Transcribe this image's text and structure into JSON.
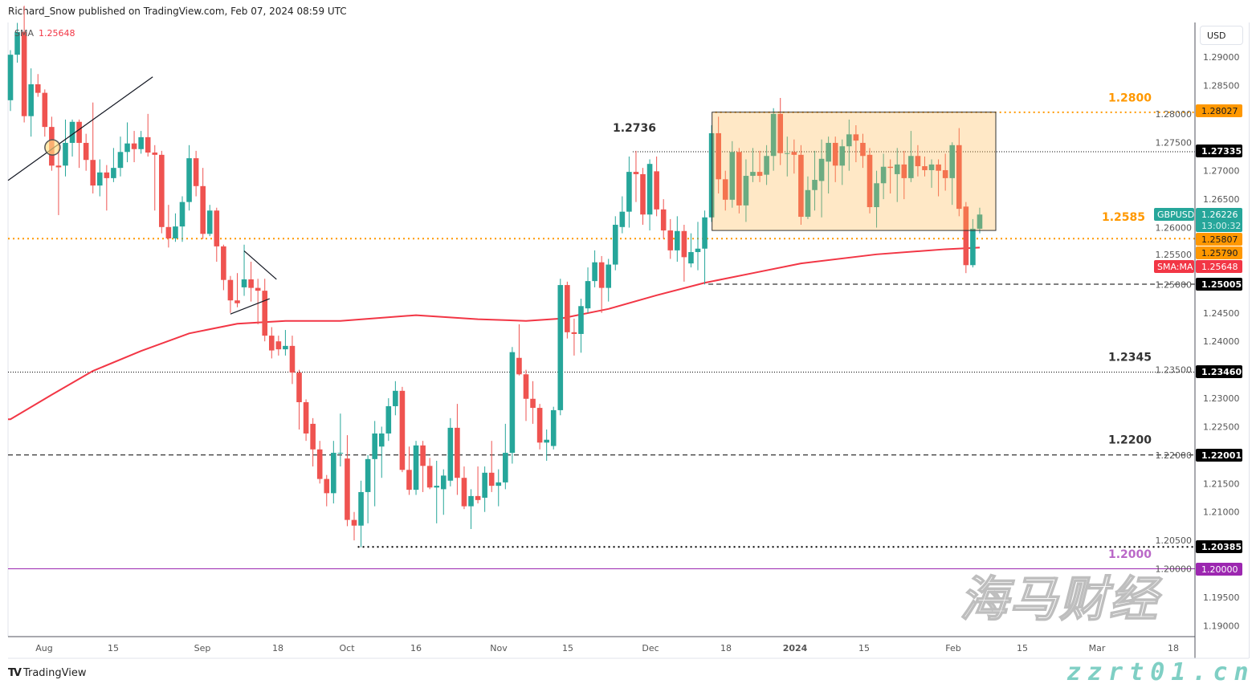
{
  "header": {
    "attribution": "Richard_Snow published on TradingView.com, Feb 07, 2024 08:59 UTC"
  },
  "legend": {
    "name": "SMA",
    "value": "1.25648"
  },
  "price_axis": {
    "currency": "USD",
    "ticks": [
      "1.29000",
      "1.28500",
      "1.28000",
      "1.27500",
      "1.27000",
      "1.26500",
      "1.26000",
      "1.25500",
      "1.25000",
      "1.24500",
      "1.24000",
      "1.23500",
      "1.23000",
      "1.22500",
      "1.22000",
      "1.21500",
      "1.21000",
      "1.20500",
      "1.20000",
      "1.19500",
      "1.19000"
    ]
  },
  "time_axis": {
    "labels": [
      "Aug",
      "15",
      "Sep",
      "18",
      "Oct",
      "16",
      "Nov",
      "15",
      "Dec",
      "18",
      "2024",
      "15",
      "Feb",
      "15",
      "Mar",
      "18"
    ]
  },
  "annotations": [
    {
      "text": "1.2800",
      "color": "#ff9800",
      "price": 1.2822
    },
    {
      "text": "1.2736",
      "color": "#333333",
      "price": 1.2769
    },
    {
      "text": "1.2585",
      "color": "#ff9800",
      "price": 1.2612
    },
    {
      "text": "1.2345",
      "color": "#333333",
      "price": 1.2366
    },
    {
      "text": "1.2200",
      "color": "#333333",
      "price": 1.222
    },
    {
      "text": "1.2000",
      "color": "#ba68c8",
      "price": 1.2019
    }
  ],
  "right_labels": [
    {
      "text": "1.28027",
      "bg": "#ff9800",
      "fg": "#131722"
    },
    {
      "text": "1.27335",
      "bg": "#000000",
      "fg": "#ffffff"
    },
    {
      "text": "1.26226",
      "sub": "13:00:32",
      "tag": "GBPUSD",
      "bg": "#26a69a",
      "fg": "#ffffff"
    },
    {
      "text": "1.25807",
      "bg": "#ff9800",
      "fg": "#131722"
    },
    {
      "text": "1.25790",
      "bg": "#ff9800",
      "fg": "#131722"
    },
    {
      "text": "1.25648",
      "tag": "SMA:MA",
      "bg": "#f23645",
      "fg": "#ffffff"
    },
    {
      "text": "1.25005",
      "bg": "#000000",
      "fg": "#ffffff"
    },
    {
      "text": "1.23460",
      "bg": "#000000",
      "fg": "#ffffff"
    },
    {
      "text": "1.22001",
      "bg": "#000000",
      "fg": "#ffffff"
    },
    {
      "text": "1.20385",
      "bg": "#000000",
      "fg": "#ffffff"
    },
    {
      "text": "1.20000",
      "bg": "#9c27b0",
      "fg": "#ffffff"
    }
  ],
  "chart_data": {
    "type": "candlestick",
    "symbol": "GBPUSD",
    "interval": "1D",
    "ylim": [
      1.1875,
      1.2965
    ],
    "colors": {
      "up": "#26a69a",
      "down": "#ef5350",
      "sma": "#f23645",
      "box": "#ffcc80"
    },
    "candles_ohlc": [
      [
        1.2824,
        1.2912,
        1.2805,
        1.2904
      ],
      [
        1.2904,
        1.296,
        1.289,
        1.2944
      ],
      [
        1.2944,
        1.299,
        1.2785,
        1.2796
      ],
      [
        1.2796,
        1.288,
        1.276,
        1.2852
      ],
      [
        1.2852,
        1.287,
        1.283,
        1.2837
      ],
      [
        1.2837,
        1.2843,
        1.276,
        1.2777
      ],
      [
        1.2777,
        1.2795,
        1.27,
        1.2709
      ],
      [
        1.2709,
        1.275,
        1.2622,
        1.2706
      ],
      [
        1.2709,
        1.279,
        1.269,
        1.2749
      ],
      [
        1.2749,
        1.279,
        1.2725,
        1.2786
      ],
      [
        1.2786,
        1.279,
        1.2705,
        1.2749
      ],
      [
        1.2749,
        1.2765,
        1.27,
        1.2719
      ],
      [
        1.2719,
        1.282,
        1.266,
        1.2674
      ],
      [
        1.2674,
        1.272,
        1.2655,
        1.2697
      ],
      [
        1.2697,
        1.271,
        1.263,
        1.2687
      ],
      [
        1.2687,
        1.274,
        1.268,
        1.2705
      ],
      [
        1.2705,
        1.276,
        1.269,
        1.2733
      ],
      [
        1.2733,
        1.2785,
        1.2715,
        1.2748
      ],
      [
        1.2748,
        1.277,
        1.2715,
        1.2738
      ],
      [
        1.2738,
        1.277,
        1.273,
        1.2759
      ],
      [
        1.2759,
        1.28,
        1.2725,
        1.2732
      ],
      [
        1.2732,
        1.2745,
        1.263,
        1.2728
      ],
      [
        1.2728,
        1.2735,
        1.259,
        1.2601
      ],
      [
        1.2601,
        1.264,
        1.2565,
        1.2581
      ],
      [
        1.2581,
        1.2625,
        1.2575,
        1.2602
      ],
      [
        1.2602,
        1.2655,
        1.2575,
        1.2645
      ],
      [
        1.2645,
        1.2745,
        1.263,
        1.2722
      ],
      [
        1.2722,
        1.2735,
        1.2655,
        1.2673
      ],
      [
        1.2673,
        1.2705,
        1.258,
        1.2589
      ],
      [
        1.2589,
        1.264,
        1.2585,
        1.263
      ],
      [
        1.263,
        1.2635,
        1.254,
        1.2567
      ],
      [
        1.2567,
        1.257,
        1.249,
        1.2508
      ],
      [
        1.2508,
        1.2515,
        1.245,
        1.2472
      ],
      [
        1.2472,
        1.252,
        1.246,
        1.2467
      ],
      [
        1.2495,
        1.257,
        1.248,
        1.2509
      ],
      [
        1.2509,
        1.254,
        1.247,
        1.2494
      ],
      [
        1.2494,
        1.251,
        1.243,
        1.2489
      ],
      [
        1.2489,
        1.251,
        1.24,
        1.241
      ],
      [
        1.241,
        1.2425,
        1.237,
        1.2384
      ],
      [
        1.24,
        1.241,
        1.2375,
        1.2386
      ],
      [
        1.2386,
        1.242,
        1.2375,
        1.2392
      ],
      [
        1.2392,
        1.241,
        1.2325,
        1.2345
      ],
      [
        1.2345,
        1.235,
        1.2245,
        1.2293
      ],
      [
        1.2293,
        1.2298,
        1.2225,
        1.2238
      ],
      [
        1.2255,
        1.2265,
        1.218,
        1.221
      ],
      [
        1.221,
        1.2225,
        1.215,
        1.2158
      ],
      [
        1.2158,
        1.2165,
        1.211,
        1.2133
      ],
      [
        1.2133,
        1.2225,
        1.2115,
        1.2204
      ],
      [
        1.2204,
        1.2273,
        1.218,
        1.2204
      ],
      [
        1.2194,
        1.2235,
        1.2075,
        1.2086
      ],
      [
        1.2086,
        1.21,
        1.205,
        1.2076
      ],
      [
        1.2076,
        1.2155,
        1.2038,
        1.2135
      ],
      [
        1.2135,
        1.22,
        1.208,
        1.2193
      ],
      [
        1.2193,
        1.226,
        1.211,
        1.2238
      ],
      [
        1.2215,
        1.225,
        1.216,
        1.2238
      ],
      [
        1.2238,
        1.23,
        1.2225,
        1.2286
      ],
      [
        1.2286,
        1.233,
        1.227,
        1.2313
      ],
      [
        1.2313,
        1.232,
        1.217,
        1.2174
      ],
      [
        1.2174,
        1.2215,
        1.213,
        1.2139
      ],
      [
        1.2139,
        1.2225,
        1.213,
        1.2217
      ],
      [
        1.2217,
        1.2225,
        1.2135,
        1.2181
      ],
      [
        1.2181,
        1.2195,
        1.214,
        1.2143
      ],
      [
        1.2143,
        1.219,
        1.208,
        1.2146
      ],
      [
        1.214,
        1.2175,
        1.2095,
        1.2164
      ],
      [
        1.2155,
        1.2265,
        1.2145,
        1.2248
      ],
      [
        1.2248,
        1.229,
        1.213,
        1.216
      ],
      [
        1.216,
        1.218,
        1.2105,
        1.211
      ],
      [
        1.211,
        1.214,
        1.207,
        1.2128
      ],
      [
        1.2128,
        1.218,
        1.2115,
        1.2121
      ],
      [
        1.2125,
        1.218,
        1.21,
        1.2169
      ],
      [
        1.2169,
        1.2225,
        1.2135,
        1.2146
      ],
      [
        1.2146,
        1.2175,
        1.211,
        1.2152
      ],
      [
        1.2152,
        1.2255,
        1.214,
        1.2204
      ],
      [
        1.2204,
        1.239,
        1.2185,
        1.2381
      ],
      [
        1.2371,
        1.243,
        1.234,
        1.2342
      ],
      [
        1.2342,
        1.235,
        1.226,
        1.2299
      ],
      [
        1.2299,
        1.233,
        1.2255,
        1.2283
      ],
      [
        1.2283,
        1.229,
        1.221,
        1.2222
      ],
      [
        1.2222,
        1.2245,
        1.219,
        1.2227
      ],
      [
        1.2216,
        1.2285,
        1.221,
        1.2279
      ],
      [
        1.2279,
        1.251,
        1.227,
        1.2499
      ],
      [
        1.2499,
        1.2505,
        1.2405,
        1.2416
      ],
      [
        1.2416,
        1.244,
        1.2375,
        1.2413
      ],
      [
        1.2413,
        1.2475,
        1.238,
        1.2462
      ],
      [
        1.2458,
        1.253,
        1.245,
        1.2506
      ],
      [
        1.2506,
        1.256,
        1.2495,
        1.2539
      ],
      [
        1.2539,
        1.255,
        1.245,
        1.2494
      ],
      [
        1.2494,
        1.2545,
        1.247,
        1.2535
      ],
      [
        1.2535,
        1.262,
        1.2525,
        1.2605
      ],
      [
        1.2601,
        1.2655,
        1.259,
        1.2628
      ],
      [
        1.2628,
        1.2725,
        1.26,
        1.2698
      ],
      [
        1.2698,
        1.2735,
        1.2645,
        1.2694
      ],
      [
        1.2694,
        1.2705,
        1.2605,
        1.2623
      ],
      [
        1.2623,
        1.272,
        1.2595,
        1.2712
      ],
      [
        1.2699,
        1.2725,
        1.262,
        1.2632
      ],
      [
        1.2632,
        1.265,
        1.258,
        1.2595
      ],
      [
        1.2595,
        1.2615,
        1.2545,
        1.256
      ],
      [
        1.256,
        1.262,
        1.254,
        1.2594
      ],
      [
        1.2594,
        1.2605,
        1.2505,
        1.2548
      ],
      [
        1.2537,
        1.259,
        1.253,
        1.2557
      ],
      [
        1.2557,
        1.261,
        1.2525,
        1.2563
      ],
      [
        1.2563,
        1.263,
        1.25,
        1.2618
      ],
      [
        1.2618,
        1.278,
        1.261,
        1.2766
      ],
      [
        1.2766,
        1.2795,
        1.266,
        1.2685
      ],
      [
        1.2685,
        1.27,
        1.263,
        1.2649
      ],
      [
        1.2649,
        1.2752,
        1.2635,
        1.2733
      ],
      [
        1.2733,
        1.274,
        1.2625,
        1.2639
      ],
      [
        1.2639,
        1.272,
        1.261,
        1.2691
      ],
      [
        1.2691,
        1.274,
        1.268,
        1.2698
      ],
      [
        1.2698,
        1.2735,
        1.268,
        1.2691
      ],
      [
        1.2693,
        1.2745,
        1.2675,
        1.2726
      ],
      [
        1.2726,
        1.281,
        1.27,
        1.28
      ],
      [
        1.28,
        1.2828,
        1.271,
        1.2731
      ],
      [
        1.2731,
        1.276,
        1.269,
        1.2731
      ],
      [
        1.2733,
        1.2755,
        1.2695,
        1.2728
      ],
      [
        1.2728,
        1.2745,
        1.2605,
        1.2619
      ],
      [
        1.2619,
        1.269,
        1.2615,
        1.2666
      ],
      [
        1.2666,
        1.2735,
        1.263,
        1.2684
      ],
      [
        1.2682,
        1.2755,
        1.2618,
        1.2721
      ],
      [
        1.2716,
        1.276,
        1.266,
        1.2749
      ],
      [
        1.2749,
        1.276,
        1.268,
        1.2709
      ],
      [
        1.2709,
        1.2755,
        1.2675,
        1.2743
      ],
      [
        1.2743,
        1.279,
        1.27,
        1.2764
      ],
      [
        1.2764,
        1.278,
        1.2715,
        1.2753
      ],
      [
        1.2749,
        1.2765,
        1.2705,
        1.2726
      ],
      [
        1.2728,
        1.274,
        1.2625,
        1.2636
      ],
      [
        1.2636,
        1.27,
        1.26,
        1.2678
      ],
      [
        1.2678,
        1.273,
        1.265,
        1.2707
      ],
      [
        1.2707,
        1.272,
        1.266,
        1.2705
      ],
      [
        1.2694,
        1.274,
        1.2645,
        1.2711
      ],
      [
        1.2711,
        1.2735,
        1.265,
        1.2687
      ],
      [
        1.2687,
        1.277,
        1.268,
        1.2726
      ],
      [
        1.2726,
        1.2745,
        1.269,
        1.2708
      ],
      [
        1.2708,
        1.2725,
        1.269,
        1.2701
      ],
      [
        1.2701,
        1.272,
        1.267,
        1.2711
      ],
      [
        1.2711,
        1.272,
        1.2655,
        1.27
      ],
      [
        1.2701,
        1.273,
        1.2665,
        1.2687
      ],
      [
        1.2687,
        1.275,
        1.264,
        1.2745
      ],
      [
        1.2745,
        1.2775,
        1.262,
        1.2633
      ],
      [
        1.2637,
        1.2645,
        1.252,
        1.2534
      ],
      [
        1.2534,
        1.2615,
        1.253,
        1.2598
      ],
      [
        1.2598,
        1.2635,
        1.259,
        1.2623
      ]
    ],
    "sma_200": [
      {
        "candle": 0,
        "value": 1.2263
      },
      {
        "candle": 6,
        "value": 1.2306
      },
      {
        "candle": 12,
        "value": 1.2348
      },
      {
        "candle": 19,
        "value": 1.2383
      },
      {
        "candle": 26,
        "value": 1.2414
      },
      {
        "candle": 33,
        "value": 1.2431
      },
      {
        "candle": 40,
        "value": 1.2436
      },
      {
        "candle": 48,
        "value": 1.2436
      },
      {
        "candle": 59,
        "value": 1.2446
      },
      {
        "candle": 68,
        "value": 1.2439
      },
      {
        "candle": 75,
        "value": 1.2436
      },
      {
        "candle": 80,
        "value": 1.244
      },
      {
        "candle": 87,
        "value": 1.2457
      },
      {
        "candle": 94,
        "value": 1.2481
      },
      {
        "candle": 101,
        "value": 1.2503
      },
      {
        "candle": 108,
        "value": 1.252
      },
      {
        "candle": 115,
        "value": 1.2537
      },
      {
        "candle": 126,
        "value": 1.2553
      },
      {
        "candle": 136,
        "value": 1.2562
      },
      {
        "candle": 141,
        "value": 1.2565
      }
    ],
    "range_box": {
      "from_candle": 103,
      "to_candle": 142,
      "top": 1.2803,
      "bottom": 1.2595
    },
    "levels": [
      {
        "price": 1.28027,
        "style": "dotted",
        "color": "#ff9800",
        "from_candle": 103
      },
      {
        "price": 1.27335,
        "style": "dotted-thin",
        "color": "#000000",
        "from_candle": 91
      },
      {
        "price": 1.25807,
        "style": "dotted",
        "color": "#ff9800",
        "from_candle": 0
      },
      {
        "price": 1.25005,
        "style": "dashed",
        "color": "#000000",
        "from_candle": 102
      },
      {
        "price": 1.2346,
        "style": "dotted-thin",
        "color": "#000000",
        "from_candle": 0
      },
      {
        "price": 1.22001,
        "style": "dashed",
        "color": "#000000",
        "from_candle": 0
      },
      {
        "price": 1.20385,
        "style": "dotted",
        "color": "#000000",
        "from_candle": 51
      },
      {
        "price": 1.2,
        "style": "solid",
        "color": "#9c27b0",
        "from_candle": 0
      }
    ],
    "trendline": {
      "from": {
        "candle": 0,
        "price": 1.2683
      },
      "to": {
        "candle": 20,
        "price": 1.2865
      }
    },
    "highlight_circle": {
      "candle": 6,
      "price": 1.2741
    },
    "pennant": [
      {
        "from": {
          "candle": 34,
          "price": 1.2559
        },
        "to": {
          "candle": 38,
          "price": 1.2509
        }
      },
      {
        "from": {
          "candle": 32,
          "price": 1.2448
        },
        "to": {
          "candle": 37,
          "price": 1.2475
        }
      }
    ]
  },
  "footer": {
    "brand": "TradingView"
  },
  "watermark": {
    "line1": "海马财经",
    "line2": "zzrt01.cn"
  }
}
